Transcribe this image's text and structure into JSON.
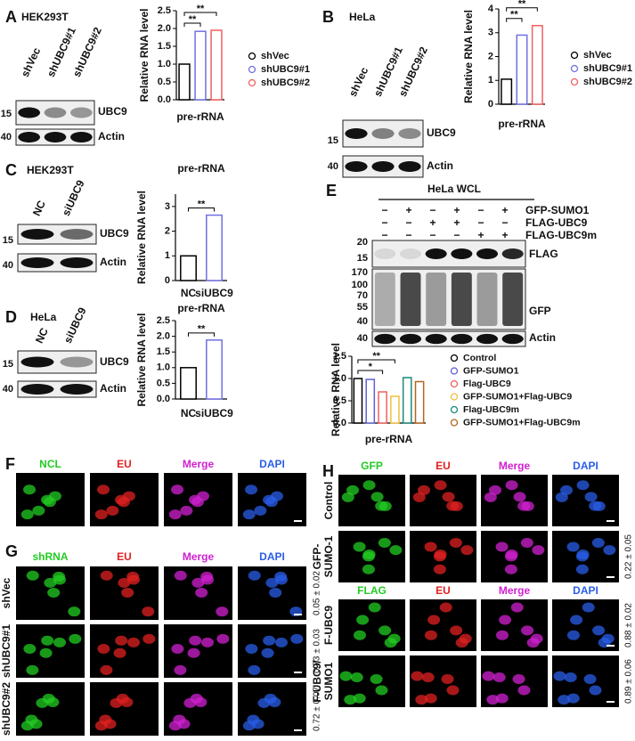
{
  "chart_data": [
    {
      "type": "bar",
      "categories": [
        "pre-rRNA"
      ],
      "y_label": "Relative RNA level",
      "series": [
        {
          "name": "shVec",
          "color": "#000000",
          "values": [
            1.0
          ]
        },
        {
          "name": "shUBC9#1",
          "color": "#7070e0",
          "values": [
            1.92
          ]
        },
        {
          "name": "shUBC9#2",
          "color": "#f06060",
          "values": [
            1.95
          ]
        }
      ],
      "ylim": [
        0,
        2.5
      ],
      "yticks": [
        {
          "value": 0,
          "label": "0.0"
        },
        {
          "value": 0.5,
          "label": "0.5"
        },
        {
          "value": 1,
          "label": "1.0"
        },
        {
          "value": 1.5,
          "label": "1.5"
        },
        {
          "value": 2,
          "label": "2.0"
        },
        {
          "value": 2.5,
          "label": "2.5"
        }
      ],
      "significance": [
        {
          "between": [
            "shVec",
            "shUBC9#1"
          ],
          "label": "**"
        },
        {
          "between": [
            "shVec",
            "shUBC9#2"
          ],
          "label": "**"
        }
      ]
    },
    {
      "type": "bar",
      "categories": [
        "pre-rRNA"
      ],
      "y_label": "Relative RNA level",
      "series": [
        {
          "name": "shVec",
          "color": "#000000",
          "values": [
            1.05
          ]
        },
        {
          "name": "shUBC9#1",
          "color": "#7070e0",
          "values": [
            2.9
          ]
        },
        {
          "name": "shUBC9#2",
          "color": "#f06060",
          "values": [
            3.3
          ]
        }
      ],
      "ylim": [
        0,
        4
      ],
      "yticks": [
        0,
        1,
        2,
        3,
        4
      ],
      "significance": [
        {
          "between": [
            "shVec",
            "shUBC9#1"
          ],
          "label": "**"
        },
        {
          "between": [
            "shVec",
            "shUBC9#2"
          ],
          "label": "**"
        }
      ]
    },
    {
      "type": "bar",
      "title": "pre-rRNA",
      "y_label": "Relative RNA level",
      "categories": [
        "NC",
        "siUBC9"
      ],
      "values": [
        1.0,
        2.65
      ],
      "colors": [
        "#000000",
        "#7070e0"
      ],
      "ylim": [
        0,
        3.5
      ],
      "yticks": [
        0,
        1,
        2,
        3
      ],
      "significance": [
        {
          "between": [
            "NC",
            "siUBC9"
          ],
          "label": "**"
        }
      ]
    },
    {
      "type": "bar",
      "title": "pre-rRNA",
      "y_label": "Relative RNA level",
      "categories": [
        "NC",
        "siUBC9"
      ],
      "values": [
        1.0,
        1.88
      ],
      "colors": [
        "#000000",
        "#7070e0"
      ],
      "ylim": [
        0,
        2.5
      ],
      "yticks": [
        {
          "value": 0,
          "label": "0.0"
        },
        {
          "value": 0.5,
          "label": "0.5"
        },
        {
          "value": 1,
          "label": "1.0"
        },
        {
          "value": 1.5,
          "label": "1.5"
        },
        {
          "value": 2,
          "label": "2.0"
        },
        {
          "value": 2.5,
          "label": "2.5"
        }
      ],
      "significance": [
        {
          "between": [
            "NC",
            "siUBC9"
          ],
          "label": "**"
        }
      ]
    },
    {
      "type": "bar",
      "categories": [
        "pre-rRNA"
      ],
      "y_label": "Relative RNA level",
      "series": [
        {
          "name": "Control",
          "color": "#000000",
          "values": [
            1.0
          ]
        },
        {
          "name": "GFP-SUMO1",
          "color": "#6060d0",
          "values": [
            0.98
          ]
        },
        {
          "name": "Flag-UBC9",
          "color": "#f06060",
          "values": [
            0.7
          ]
        },
        {
          "name": "GFP-SUMO1+Flag-UBC9",
          "color": "#f0c040",
          "values": [
            0.6
          ]
        },
        {
          "name": "Flag-UBC9m",
          "color": "#1a8a7a",
          "values": [
            1.02
          ]
        },
        {
          "name": "GFP-SUMO1+Flag-UBC9m",
          "color": "#b5651d",
          "values": [
            0.93
          ]
        }
      ],
      "ylim": [
        0,
        1.5
      ],
      "yticks": [
        {
          "value": 0,
          "label": "0.0"
        },
        {
          "value": 0.5,
          "label": "0.5"
        },
        {
          "value": 1,
          "label": "1.0"
        },
        {
          "value": 1.5,
          "label": "1.5"
        }
      ],
      "significance": [
        {
          "between": [
            "Control",
            "Flag-UBC9"
          ],
          "label": "*"
        },
        {
          "between": [
            "Control",
            "GFP-SUMO1+Flag-UBC9"
          ],
          "label": "**"
        }
      ]
    }
  ],
  "blots": [
    {
      "letter": "A",
      "cell_line": "HEK293T",
      "lanes": [
        "shVec",
        "shUBC9#1",
        "shUBC9#2"
      ],
      "markers": [
        15,
        40
      ],
      "bands": [
        "UBC9",
        "Actin"
      ]
    },
    {
      "letter": "B",
      "cell_line": "HeLa",
      "lanes": [
        "shVec",
        "shUBC9#1",
        "shUBC9#2"
      ],
      "markers": [
        15,
        40
      ],
      "bands": [
        "UBC9",
        "Actin"
      ]
    },
    {
      "letter": "C",
      "cell_line": "HEK293T",
      "lanes": [
        "NC",
        "siUBC9"
      ],
      "markers": [
        15,
        40
      ],
      "bands": [
        "UBC9",
        "Actin"
      ]
    },
    {
      "letter": "D",
      "cell_line": "HeLa",
      "lanes": [
        "NC",
        "siUBC9"
      ],
      "markers": [
        15,
        40
      ],
      "bands": [
        "UBC9",
        "Actin"
      ]
    },
    {
      "letter": "E",
      "cell_line": "HeLa WCL",
      "conditions": [
        {
          "name": "GFP-SUMO1",
          "signs": [
            "−",
            "+",
            "−",
            "+",
            "−",
            "+"
          ]
        },
        {
          "name": "FLAG-UBC9",
          "signs": [
            "−",
            "−",
            "+",
            "+",
            "−",
            "−"
          ]
        },
        {
          "name": "FLAG-UBC9m",
          "signs": [
            "−",
            "−",
            "−",
            "−",
            "+",
            "+"
          ]
        }
      ],
      "markers": [
        20,
        15,
        170,
        100,
        70,
        55,
        40,
        40
      ],
      "bands": [
        "FLAG",
        "GFP",
        "Actin"
      ]
    }
  ],
  "imaging": [
    {
      "letter": "F",
      "blocks": [
        {
          "channels": [
            {
              "name": "NCL",
              "color": "#22cc22"
            },
            {
              "name": "EU",
              "color": "#e02020"
            },
            {
              "name": "Merge",
              "color": "#d020d0"
            },
            {
              "name": "DAPI",
              "color": "#2a5ee8"
            }
          ]
        }
      ]
    },
    {
      "letter": "G",
      "blocks": [
        {
          "channels": [
            {
              "name": "shRNA",
              "color": "#22cc22"
            },
            {
              "name": "EU",
              "color": "#e02020"
            },
            {
              "name": "Merge",
              "color": "#d020d0"
            },
            {
              "name": "DAPI",
              "color": "#2a5ee8"
            }
          ],
          "rows": [
            {
              "label": [
                "shVec"
              ],
              "quant": "0.05 ± 0.02"
            },
            {
              "label": [
                "shUBC9#1"
              ],
              "quant": "0.73 ± 0.03"
            },
            {
              "label": [
                "shUBC9#2"
              ],
              "quant": "0.72 ± 0.07"
            }
          ]
        }
      ]
    },
    {
      "letter": "H",
      "blocks": [
        {
          "channels": [
            {
              "name": "GFP",
              "color": "#22cc22"
            },
            {
              "name": "EU",
              "color": "#e02020"
            },
            {
              "name": "Merge",
              "color": "#d020d0"
            },
            {
              "name": "DAPI",
              "color": "#2a5ee8"
            }
          ],
          "rows": [
            {
              "label": [
                "Control"
              ]
            },
            {
              "label": [
                "GFP-",
                "SUMO-1"
              ],
              "quant": "0.22 ± 0.05"
            }
          ]
        },
        {
          "channels": [
            {
              "name": "FLAG",
              "color": "#22cc22"
            },
            {
              "name": "EU",
              "color": "#e02020"
            },
            {
              "name": "Merge",
              "color": "#d020d0"
            },
            {
              "name": "DAPI",
              "color": "#2a5ee8"
            }
          ],
          "rows": [
            {
              "label": [
                "F-UBC9"
              ],
              "quant": "0.88 ± 0.02"
            },
            {
              "label": [
                "F-UBC9/",
                "SUMO1"
              ],
              "quant": "0.89 ± 0.06"
            }
          ]
        }
      ]
    }
  ]
}
